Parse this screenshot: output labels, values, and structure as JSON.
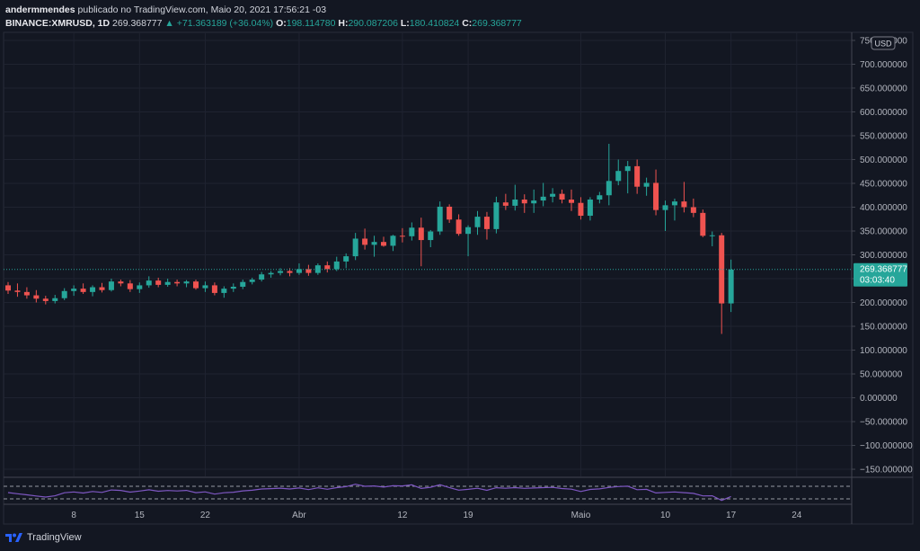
{
  "header": {
    "author": "andermmendes",
    "published": "publicado no TradingView.com, Maio 20, 2021 17:56:21 -03",
    "symbol": "BINANCE:XMRUSD, 1D",
    "last": "269.368777",
    "change": "▲ +71.363189 (+36.04%)",
    "open_label": "O:",
    "open": "198.114780",
    "high_label": "H:",
    "high": "290.087206",
    "low_label": "L:",
    "low": "180.410824",
    "close_label": "C:",
    "close": "269.368777"
  },
  "footer": {
    "brand": "TradingView",
    "logo_icon": "tradingview-logo-icon"
  },
  "colors": {
    "up": "#26a69a",
    "down": "#ef5350",
    "rsi": "#7e57c2",
    "background": "#131722"
  },
  "chart_data": {
    "type": "candlestick",
    "currency_badge": "USD",
    "y_ticks": [
      "750.000000",
      "700.000000",
      "650.000000",
      "600.000000",
      "550.000000",
      "500.000000",
      "450.000000",
      "400.000000",
      "350.000000",
      "300.000000",
      "250.000000",
      "200.000000",
      "150.000000",
      "100.000000",
      "50.000000",
      "0.000000",
      "−50.000000",
      "−100.000000",
      "−150.000000"
    ],
    "y_tick_values": [
      750,
      700,
      650,
      600,
      550,
      500,
      450,
      400,
      350,
      300,
      250,
      200,
      150,
      100,
      50,
      0,
      -50,
      -100,
      -150
    ],
    "ylim": [
      -165,
      765
    ],
    "x_ticks": [
      "8",
      "15",
      "22",
      "Abr",
      "12",
      "19",
      "Maio",
      "10",
      "17",
      "24"
    ],
    "x_tick_days": [
      7,
      14,
      21,
      31,
      42,
      49,
      61,
      70,
      77,
      84
    ],
    "last_price_label": "269.368777",
    "countdown": "03:03:40",
    "last_price": 269.37,
    "candles": [
      {
        "o": 236,
        "h": 243,
        "l": 218,
        "c": 225
      },
      {
        "o": 225,
        "h": 240,
        "l": 212,
        "c": 222
      },
      {
        "o": 222,
        "h": 232,
        "l": 208,
        "c": 215
      },
      {
        "o": 215,
        "h": 226,
        "l": 200,
        "c": 208
      },
      {
        "o": 208,
        "h": 214,
        "l": 196,
        "c": 203
      },
      {
        "o": 203,
        "h": 216,
        "l": 198,
        "c": 209
      },
      {
        "o": 209,
        "h": 230,
        "l": 205,
        "c": 224
      },
      {
        "o": 224,
        "h": 236,
        "l": 214,
        "c": 229
      },
      {
        "o": 229,
        "h": 240,
        "l": 218,
        "c": 222
      },
      {
        "o": 222,
        "h": 236,
        "l": 213,
        "c": 232
      },
      {
        "o": 232,
        "h": 241,
        "l": 221,
        "c": 226
      },
      {
        "o": 226,
        "h": 250,
        "l": 223,
        "c": 244
      },
      {
        "o": 244,
        "h": 248,
        "l": 234,
        "c": 240
      },
      {
        "o": 240,
        "h": 247,
        "l": 222,
        "c": 228
      },
      {
        "o": 228,
        "h": 242,
        "l": 220,
        "c": 236
      },
      {
        "o": 236,
        "h": 255,
        "l": 231,
        "c": 246
      },
      {
        "o": 246,
        "h": 252,
        "l": 232,
        "c": 237
      },
      {
        "o": 237,
        "h": 250,
        "l": 233,
        "c": 243
      },
      {
        "o": 243,
        "h": 248,
        "l": 234,
        "c": 240
      },
      {
        "o": 240,
        "h": 247,
        "l": 232,
        "c": 244
      },
      {
        "o": 244,
        "h": 248,
        "l": 227,
        "c": 230
      },
      {
        "o": 230,
        "h": 244,
        "l": 222,
        "c": 236
      },
      {
        "o": 236,
        "h": 242,
        "l": 215,
        "c": 220
      },
      {
        "o": 220,
        "h": 234,
        "l": 210,
        "c": 229
      },
      {
        "o": 229,
        "h": 240,
        "l": 222,
        "c": 233
      },
      {
        "o": 233,
        "h": 248,
        "l": 228,
        "c": 243
      },
      {
        "o": 243,
        "h": 252,
        "l": 238,
        "c": 248
      },
      {
        "o": 248,
        "h": 264,
        "l": 244,
        "c": 259
      },
      {
        "o": 259,
        "h": 266,
        "l": 252,
        "c": 262
      },
      {
        "o": 262,
        "h": 272,
        "l": 257,
        "c": 266
      },
      {
        "o": 266,
        "h": 272,
        "l": 255,
        "c": 262
      },
      {
        "o": 262,
        "h": 282,
        "l": 258,
        "c": 270
      },
      {
        "o": 270,
        "h": 279,
        "l": 256,
        "c": 262
      },
      {
        "o": 262,
        "h": 282,
        "l": 258,
        "c": 278
      },
      {
        "o": 278,
        "h": 286,
        "l": 263,
        "c": 270
      },
      {
        "o": 270,
        "h": 296,
        "l": 266,
        "c": 286
      },
      {
        "o": 286,
        "h": 303,
        "l": 272,
        "c": 297
      },
      {
        "o": 297,
        "h": 346,
        "l": 289,
        "c": 334
      },
      {
        "o": 334,
        "h": 355,
        "l": 311,
        "c": 321
      },
      {
        "o": 321,
        "h": 340,
        "l": 296,
        "c": 327
      },
      {
        "o": 327,
        "h": 338,
        "l": 317,
        "c": 319
      },
      {
        "o": 319,
        "h": 342,
        "l": 308,
        "c": 340
      },
      {
        "o": 340,
        "h": 356,
        "l": 326,
        "c": 339
      },
      {
        "o": 339,
        "h": 368,
        "l": 330,
        "c": 357
      },
      {
        "o": 357,
        "h": 378,
        "l": 276,
        "c": 331
      },
      {
        "o": 331,
        "h": 352,
        "l": 316,
        "c": 349
      },
      {
        "o": 349,
        "h": 412,
        "l": 342,
        "c": 401
      },
      {
        "o": 401,
        "h": 406,
        "l": 367,
        "c": 374
      },
      {
        "o": 374,
        "h": 385,
        "l": 340,
        "c": 344
      },
      {
        "o": 344,
        "h": 362,
        "l": 297,
        "c": 358
      },
      {
        "o": 358,
        "h": 392,
        "l": 342,
        "c": 380
      },
      {
        "o": 380,
        "h": 390,
        "l": 332,
        "c": 354
      },
      {
        "o": 354,
        "h": 422,
        "l": 345,
        "c": 410
      },
      {
        "o": 410,
        "h": 428,
        "l": 394,
        "c": 403
      },
      {
        "o": 403,
        "h": 447,
        "l": 393,
        "c": 416
      },
      {
        "o": 416,
        "h": 427,
        "l": 388,
        "c": 408
      },
      {
        "o": 408,
        "h": 437,
        "l": 388,
        "c": 414
      },
      {
        "o": 414,
        "h": 451,
        "l": 402,
        "c": 422
      },
      {
        "o": 422,
        "h": 440,
        "l": 410,
        "c": 428
      },
      {
        "o": 428,
        "h": 437,
        "l": 408,
        "c": 416
      },
      {
        "o": 416,
        "h": 437,
        "l": 392,
        "c": 409
      },
      {
        "o": 409,
        "h": 421,
        "l": 374,
        "c": 382
      },
      {
        "o": 382,
        "h": 421,
        "l": 372,
        "c": 416
      },
      {
        "o": 416,
        "h": 432,
        "l": 408,
        "c": 425
      },
      {
        "o": 425,
        "h": 533,
        "l": 404,
        "c": 455
      },
      {
        "o": 455,
        "h": 500,
        "l": 446,
        "c": 476
      },
      {
        "o": 476,
        "h": 497,
        "l": 429,
        "c": 486
      },
      {
        "o": 486,
        "h": 500,
        "l": 428,
        "c": 443
      },
      {
        "o": 443,
        "h": 462,
        "l": 424,
        "c": 451
      },
      {
        "o": 451,
        "h": 479,
        "l": 383,
        "c": 394
      },
      {
        "o": 394,
        "h": 414,
        "l": 350,
        "c": 404
      },
      {
        "o": 404,
        "h": 418,
        "l": 372,
        "c": 412
      },
      {
        "o": 412,
        "h": 453,
        "l": 389,
        "c": 400
      },
      {
        "o": 400,
        "h": 418,
        "l": 379,
        "c": 388
      },
      {
        "o": 388,
        "h": 395,
        "l": 337,
        "c": 340
      },
      {
        "o": 340,
        "h": 349,
        "l": 318,
        "c": 341
      },
      {
        "o": 341,
        "h": 346,
        "l": 134,
        "c": 198
      },
      {
        "o": 198,
        "h": 290,
        "l": 180,
        "c": 269
      }
    ]
  }
}
